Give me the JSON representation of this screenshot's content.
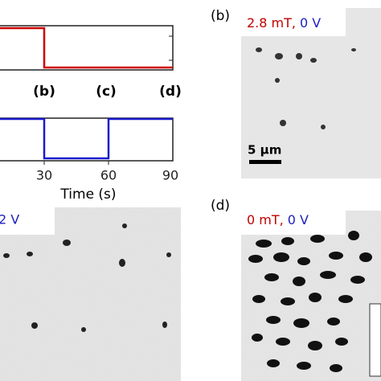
{
  "timing_plot": {
    "panel_labels": [
      "(b)",
      "(c)",
      "(d)"
    ],
    "x_tick_labels": [
      "30",
      "60",
      "90"
    ],
    "x_axis_label": "Time (s)"
  },
  "panel_b": {
    "label": "(b)",
    "field": "2.8 mT,",
    "voltage": "0 V",
    "scale_bar": "5 μm"
  },
  "panel_c": {
    "voltage": "2 V"
  },
  "panel_d": {
    "label": "(d)",
    "field": "0 mT,",
    "voltage": "0 V"
  }
}
